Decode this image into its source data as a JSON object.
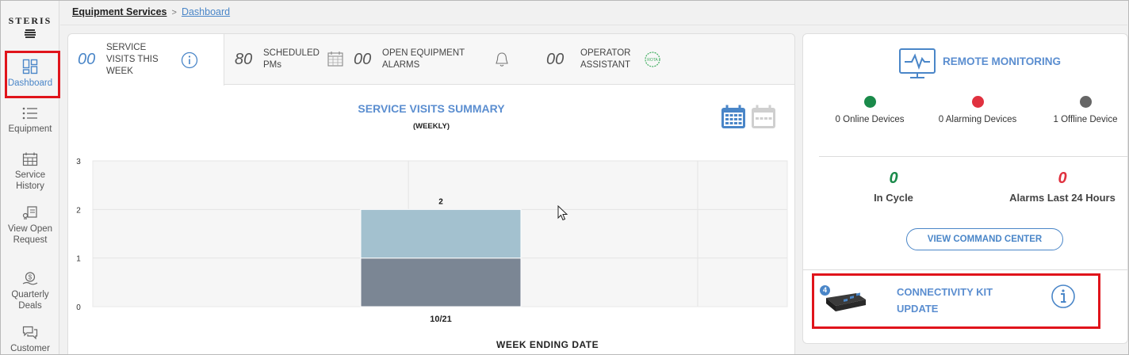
{
  "brand": {
    "name": "STERIS"
  },
  "sidebar": {
    "items": [
      {
        "label": "Dashboard",
        "icon": "dashboard-icon",
        "active": true
      },
      {
        "label": "Equipment",
        "icon": "list-icon"
      },
      {
        "label": "Service History",
        "icon": "calendar-grid-icon"
      },
      {
        "label": "View Open Request",
        "icon": "request-icon"
      },
      {
        "label": "Quarterly Deals",
        "icon": "deals-icon"
      },
      {
        "label": "Customer",
        "icon": "chat-icon"
      }
    ]
  },
  "breadcrumb": {
    "root": "Equipment Services",
    "separator": ">",
    "current": "Dashboard"
  },
  "tabs": [
    {
      "number": "00",
      "label": "SERVICE VISITS THIS WEEK",
      "icon": "info-icon",
      "active": true
    },
    {
      "number": "80",
      "label": "SCHEDULED PMs",
      "icon": "calendar-icon"
    },
    {
      "number": "00",
      "label": "OPEN EQUIPMENT ALARMS",
      "icon": "bell-icon"
    },
    {
      "number": "00",
      "label": "OPERATOR ASSISTANT",
      "icon": "badge-icon",
      "badge_text": "ROTA"
    }
  ],
  "summary": {
    "title": "SERVICE VISITS SUMMARY",
    "subtitle": "(WEEKLY)"
  },
  "colors": {
    "accent": "#4a86c8",
    "bar_top": "#a3c1cf",
    "bar_bottom": "#7b8694",
    "online": "#1a8a4a",
    "alarm": "#e0313f",
    "offline": "#666666",
    "highlight": "#e0141b"
  },
  "chart_data": {
    "type": "bar",
    "categories": [
      "10/21"
    ],
    "series": [
      {
        "values": [
          1
        ]
      },
      {
        "values": [
          1
        ]
      }
    ],
    "stacked": true,
    "totals": [
      2
    ],
    "yticks": [
      "0",
      "1",
      "2",
      "3"
    ],
    "ylim": [
      0,
      3
    ],
    "xlabel": "WEEK ENDING DATE",
    "ylabel": "",
    "grid": true
  },
  "remote": {
    "title": "REMOTE MONITORING",
    "devices": [
      {
        "label": "0 Online Devices",
        "status": "online"
      },
      {
        "label": "0 Alarming Devices",
        "status": "alarm"
      },
      {
        "label": "1 Offline Device",
        "status": "offline"
      }
    ],
    "in_cycle": {
      "value": "0",
      "label": "In Cycle"
    },
    "alarms_24h": {
      "value": "0",
      "label": "Alarms Last 24 Hours"
    },
    "command_button": "VIEW COMMAND CENTER"
  },
  "kit": {
    "title": "CONNECTIVITY KIT UPDATE",
    "badge": "4"
  }
}
